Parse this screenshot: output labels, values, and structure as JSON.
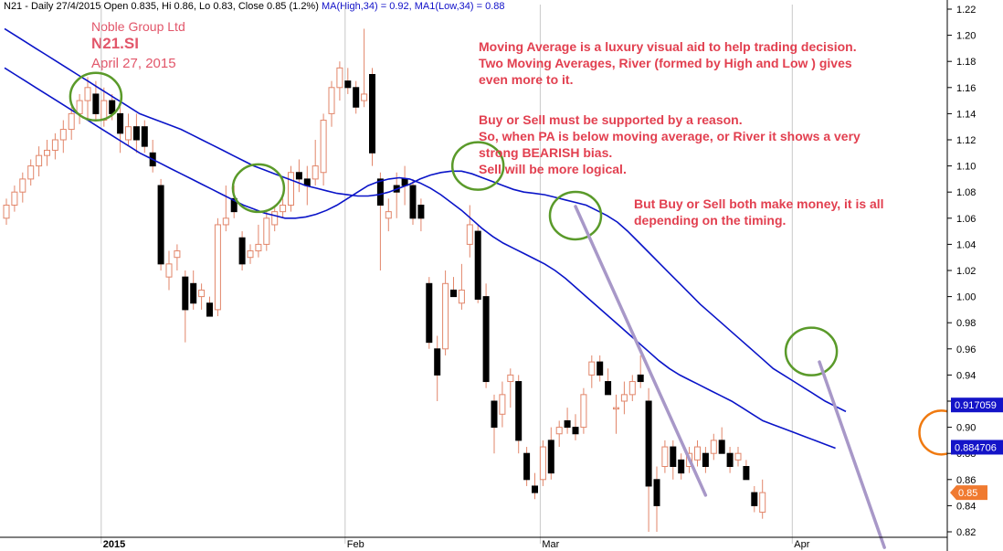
{
  "header": {
    "info": "N21 - Daily 27/4/2015 Open 0.835, Hi 0.86, Lo 0.83, Close 0.85 (1.2%)",
    "ma_high": "MA(High,34) = 0.92,",
    "ma_low": "MA1(Low,34) = 0.88"
  },
  "titles": {
    "company": "Noble Group Ltd",
    "symbol": "N21.SI",
    "date": "April 27, 2015"
  },
  "annotations": {
    "note1": "Moving Average is a luxury visual aid to help trading decision.\nTwo Moving Averages, River (formed by High and Low ) gives\neven more to it.",
    "note2": "Buy or Sell must be supported by a reason.\nSo, when PA is below moving average, or River it shows a very\nstrong BEARISH bias.\nSell will be more logical.",
    "note3": "But Buy or Sell both make money, it is all\ndepending on the timing."
  },
  "colors": {
    "up": "#ffffff",
    "down": "#000000",
    "wick": "#e2866a",
    "ma": "#0a14c8",
    "circle_green": "#5a9a2a",
    "circle_orange": "#f07a10",
    "trendline": "#a898c8",
    "price_box": "#1414c8",
    "last_box": "#f07a30"
  },
  "chart_data": {
    "type": "candlestick",
    "ylim": [
      0.815,
      1.225
    ],
    "y_ticks": [
      "1.22",
      "1.20",
      "1.18",
      "1.16",
      "1.14",
      "1.12",
      "1.10",
      "1.08",
      "1.06",
      "1.04",
      "1.02",
      "1.00",
      "0.98",
      "0.96",
      "0.94",
      "0.92",
      "0.90",
      "0.88",
      "0.86",
      "0.84",
      "0.82"
    ],
    "x_labels": [
      {
        "label": "2015",
        "index": 12
      },
      {
        "label": "Feb",
        "index": 42
      },
      {
        "label": "Mar",
        "index": 66
      },
      {
        "label": "Apr",
        "index": 97
      }
    ],
    "candles": [
      {
        "o": 1.06,
        "h": 1.075,
        "l": 1.055,
        "c": 1.07
      },
      {
        "o": 1.07,
        "h": 1.085,
        "l": 1.065,
        "c": 1.08
      },
      {
        "o": 1.08,
        "h": 1.095,
        "l": 1.072,
        "c": 1.09
      },
      {
        "o": 1.09,
        "h": 1.105,
        "l": 1.085,
        "c": 1.1
      },
      {
        "o": 1.1,
        "h": 1.115,
        "l": 1.092,
        "c": 1.108
      },
      {
        "o": 1.108,
        "h": 1.12,
        "l": 1.1,
        "c": 1.112
      },
      {
        "o": 1.112,
        "h": 1.125,
        "l": 1.105,
        "c": 1.12
      },
      {
        "o": 1.12,
        "h": 1.135,
        "l": 1.11,
        "c": 1.128
      },
      {
        "o": 1.128,
        "h": 1.145,
        "l": 1.12,
        "c": 1.14
      },
      {
        "o": 1.14,
        "h": 1.155,
        "l": 1.132,
        "c": 1.15
      },
      {
        "o": 1.15,
        "h": 1.168,
        "l": 1.135,
        "c": 1.16
      },
      {
        "o": 1.155,
        "h": 1.165,
        "l": 1.135,
        "c": 1.14
      },
      {
        "o": 1.135,
        "h": 1.16,
        "l": 1.13,
        "c": 1.15
      },
      {
        "o": 1.15,
        "h": 1.155,
        "l": 1.135,
        "c": 1.14
      },
      {
        "o": 1.14,
        "h": 1.145,
        "l": 1.11,
        "c": 1.125
      },
      {
        "o": 1.12,
        "h": 1.14,
        "l": 1.115,
        "c": 1.13
      },
      {
        "o": 1.13,
        "h": 1.14,
        "l": 1.11,
        "c": 1.12
      },
      {
        "o": 1.13,
        "h": 1.135,
        "l": 1.11,
        "c": 1.115
      },
      {
        "o": 1.11,
        "h": 1.12,
        "l": 1.095,
        "c": 1.1
      },
      {
        "o": 1.085,
        "h": 1.09,
        "l": 1.02,
        "c": 1.025
      },
      {
        "o": 1.015,
        "h": 1.035,
        "l": 1.005,
        "c": 1.025
      },
      {
        "o": 1.03,
        "h": 1.04,
        "l": 1.02,
        "c": 1.035
      },
      {
        "o": 1.015,
        "h": 1.02,
        "l": 0.965,
        "c": 0.99
      },
      {
        "o": 1.01,
        "h": 1.02,
        "l": 0.99,
        "c": 0.995
      },
      {
        "o": 1.0,
        "h": 1.01,
        "l": 0.99,
        "c": 1.005
      },
      {
        "o": 0.995,
        "h": 1.0,
        "l": 0.985,
        "c": 0.985
      },
      {
        "o": 0.99,
        "h": 1.06,
        "l": 0.985,
        "c": 1.055
      },
      {
        "o": 1.055,
        "h": 1.085,
        "l": 1.05,
        "c": 1.06
      },
      {
        "o": 1.075,
        "h": 1.085,
        "l": 1.06,
        "c": 1.065
      },
      {
        "o": 1.045,
        "h": 1.05,
        "l": 1.02,
        "c": 1.025
      },
      {
        "o": 1.03,
        "h": 1.04,
        "l": 1.025,
        "c": 1.035
      },
      {
        "o": 1.035,
        "h": 1.055,
        "l": 1.03,
        "c": 1.04
      },
      {
        "o": 1.04,
        "h": 1.065,
        "l": 1.035,
        "c": 1.06
      },
      {
        "o": 1.055,
        "h": 1.07,
        "l": 1.05,
        "c": 1.065
      },
      {
        "o": 1.065,
        "h": 1.075,
        "l": 1.06,
        "c": 1.07
      },
      {
        "o": 1.07,
        "h": 1.1,
        "l": 1.065,
        "c": 1.095
      },
      {
        "o": 1.095,
        "h": 1.105,
        "l": 1.08,
        "c": 1.09
      },
      {
        "o": 1.09,
        "h": 1.1,
        "l": 1.07,
        "c": 1.085
      },
      {
        "o": 1.09,
        "h": 1.12,
        "l": 1.085,
        "c": 1.1
      },
      {
        "o": 1.095,
        "h": 1.14,
        "l": 1.085,
        "c": 1.135
      },
      {
        "o": 1.14,
        "h": 1.165,
        "l": 1.13,
        "c": 1.16
      },
      {
        "o": 1.16,
        "h": 1.18,
        "l": 1.15,
        "c": 1.175
      },
      {
        "o": 1.165,
        "h": 1.175,
        "l": 1.155,
        "c": 1.16
      },
      {
        "o": 1.16,
        "h": 1.165,
        "l": 1.14,
        "c": 1.145
      },
      {
        "o": 1.15,
        "h": 1.205,
        "l": 1.145,
        "c": 1.155
      },
      {
        "o": 1.17,
        "h": 1.175,
        "l": 1.1,
        "c": 1.11
      },
      {
        "o": 1.09,
        "h": 1.095,
        "l": 1.02,
        "c": 1.07
      },
      {
        "o": 1.06,
        "h": 1.075,
        "l": 1.05,
        "c": 1.065
      },
      {
        "o": 1.085,
        "h": 1.095,
        "l": 1.06,
        "c": 1.08
      },
      {
        "o": 1.09,
        "h": 1.1,
        "l": 1.07,
        "c": 1.085
      },
      {
        "o": 1.085,
        "h": 1.09,
        "l": 1.055,
        "c": 1.06
      },
      {
        "o": 1.07,
        "h": 1.075,
        "l": 1.05,
        "c": 1.06
      },
      {
        "o": 1.01,
        "h": 1.015,
        "l": 0.96,
        "c": 0.965
      },
      {
        "o": 0.96,
        "h": 0.97,
        "l": 0.92,
        "c": 0.94
      },
      {
        "o": 0.96,
        "h": 1.02,
        "l": 0.955,
        "c": 1.01
      },
      {
        "o": 1.005,
        "h": 1.015,
        "l": 1.0,
        "c": 1.0
      },
      {
        "o": 0.995,
        "h": 1.025,
        "l": 0.99,
        "c": 1.005
      },
      {
        "o": 1.04,
        "h": 1.07,
        "l": 1.03,
        "c": 1.055
      },
      {
        "o": 1.05,
        "h": 1.055,
        "l": 0.995,
        "c": 0.998
      },
      {
        "o": 1.0,
        "h": 1.01,
        "l": 0.93,
        "c": 0.935
      },
      {
        "o": 0.92,
        "h": 0.925,
        "l": 0.88,
        "c": 0.9
      },
      {
        "o": 0.91,
        "h": 0.935,
        "l": 0.9,
        "c": 0.925
      },
      {
        "o": 0.935,
        "h": 0.945,
        "l": 0.915,
        "c": 0.94
      },
      {
        "o": 0.935,
        "h": 0.94,
        "l": 0.88,
        "c": 0.89
      },
      {
        "o": 0.88,
        "h": 0.885,
        "l": 0.855,
        "c": 0.86
      },
      {
        "o": 0.855,
        "h": 0.865,
        "l": 0.845,
        "c": 0.85
      },
      {
        "o": 0.86,
        "h": 0.89,
        "l": 0.855,
        "c": 0.885
      },
      {
        "o": 0.89,
        "h": 0.9,
        "l": 0.86,
        "c": 0.865
      },
      {
        "o": 0.895,
        "h": 0.905,
        "l": 0.885,
        "c": 0.9
      },
      {
        "o": 0.905,
        "h": 0.915,
        "l": 0.895,
        "c": 0.9
      },
      {
        "o": 0.9,
        "h": 0.91,
        "l": 0.89,
        "c": 0.895
      },
      {
        "o": 0.9,
        "h": 0.93,
        "l": 0.895,
        "c": 0.925
      },
      {
        "o": 0.94,
        "h": 0.955,
        "l": 0.93,
        "c": 0.95
      },
      {
        "o": 0.95,
        "h": 0.955,
        "l": 0.935,
        "c": 0.94
      },
      {
        "o": 0.935,
        "h": 0.945,
        "l": 0.925,
        "c": 0.925
      },
      {
        "o": 0.915,
        "h": 0.925,
        "l": 0.895,
        "c": 0.915
      },
      {
        "o": 0.92,
        "h": 0.935,
        "l": 0.91,
        "c": 0.925
      },
      {
        "o": 0.925,
        "h": 0.94,
        "l": 0.92,
        "c": 0.935
      },
      {
        "o": 0.94,
        "h": 0.955,
        "l": 0.93,
        "c": 0.935
      },
      {
        "o": 0.92,
        "h": 0.93,
        "l": 0.82,
        "c": 0.855
      },
      {
        "o": 0.86,
        "h": 0.87,
        "l": 0.82,
        "c": 0.84
      },
      {
        "o": 0.87,
        "h": 0.89,
        "l": 0.865,
        "c": 0.885
      },
      {
        "o": 0.885,
        "h": 0.89,
        "l": 0.86,
        "c": 0.87
      },
      {
        "o": 0.875,
        "h": 0.88,
        "l": 0.86,
        "c": 0.865
      },
      {
        "o": 0.87,
        "h": 0.885,
        "l": 0.865,
        "c": 0.88
      },
      {
        "o": 0.875,
        "h": 0.89,
        "l": 0.87,
        "c": 0.885
      },
      {
        "o": 0.88,
        "h": 0.885,
        "l": 0.865,
        "c": 0.87
      },
      {
        "o": 0.88,
        "h": 0.895,
        "l": 0.875,
        "c": 0.89
      },
      {
        "o": 0.89,
        "h": 0.9,
        "l": 0.88,
        "c": 0.88
      },
      {
        "o": 0.88,
        "h": 0.885,
        "l": 0.865,
        "c": 0.87
      },
      {
        "o": 0.875,
        "h": 0.885,
        "l": 0.87,
        "c": 0.88
      },
      {
        "o": 0.87,
        "h": 0.875,
        "l": 0.86,
        "c": 0.86
      },
      {
        "o": 0.85,
        "h": 0.855,
        "l": 0.835,
        "c": 0.84
      },
      {
        "o": 0.835,
        "h": 0.86,
        "l": 0.83,
        "c": 0.85
      }
    ],
    "ma_high": [
      1.205,
      1.2,
      1.195,
      1.19,
      1.185,
      1.18,
      1.175,
      1.17,
      1.165,
      1.16,
      1.155,
      1.15,
      1.145,
      1.14,
      1.137,
      1.134,
      1.131,
      1.128,
      1.124,
      1.12,
      1.116,
      1.112,
      1.108,
      1.104,
      1.1,
      1.097,
      1.094,
      1.091,
      1.088,
      1.085,
      1.083,
      1.081,
      1.079,
      1.078,
      1.077,
      1.077,
      1.078,
      1.08,
      1.083,
      1.086,
      1.09,
      1.093,
      1.095,
      1.096,
      1.096,
      1.094,
      1.091,
      1.088,
      1.085,
      1.082,
      1.08,
      1.079,
      1.078,
      1.076,
      1.074,
      1.072,
      1.07,
      1.066,
      1.062,
      1.057,
      1.05,
      1.042,
      1.034,
      1.026,
      1.018,
      1.01,
      1.002,
      0.994,
      0.987,
      0.98,
      0.973,
      0.966,
      0.959,
      0.952,
      0.945,
      0.94,
      0.935,
      0.93,
      0.925,
      0.92,
      0.916,
      0.912
    ],
    "ma_low": [
      1.175,
      1.17,
      1.165,
      1.16,
      1.155,
      1.15,
      1.145,
      1.14,
      1.135,
      1.13,
      1.125,
      1.12,
      1.115,
      1.11,
      1.106,
      1.102,
      1.098,
      1.094,
      1.09,
      1.086,
      1.082,
      1.078,
      1.074,
      1.07,
      1.067,
      1.064,
      1.062,
      1.06,
      1.06,
      1.061,
      1.063,
      1.066,
      1.07,
      1.075,
      1.08,
      1.085,
      1.088,
      1.09,
      1.091,
      1.09,
      1.087,
      1.083,
      1.078,
      1.072,
      1.066,
      1.059,
      1.052,
      1.046,
      1.041,
      1.037,
      1.033,
      1.029,
      1.025,
      1.02,
      1.014,
      1.007,
      1.0,
      0.993,
      0.986,
      0.979,
      0.972,
      0.965,
      0.958,
      0.951,
      0.945,
      0.94,
      0.936,
      0.932,
      0.928,
      0.924,
      0.92,
      0.915,
      0.91,
      0.905,
      0.902,
      0.899,
      0.896,
      0.893,
      0.89,
      0.887,
      0.884
    ],
    "price_labels": [
      {
        "text": "0.917059",
        "value": 0.917059
      },
      {
        "text": "0.884706",
        "value": 0.884706
      },
      {
        "text": "0.85",
        "value": 0.85
      }
    ],
    "circles": [
      {
        "index": 11,
        "price": 1.153,
        "color": "green"
      },
      {
        "index": 31,
        "price": 1.083,
        "color": "green"
      },
      {
        "index": 58,
        "price": 1.1,
        "color": "green"
      },
      {
        "index": 70,
        "price": 1.062,
        "color": "green"
      },
      {
        "index": 99,
        "price": 0.958,
        "color": "green"
      },
      {
        "index": 115,
        "price": 0.896,
        "color": "orange"
      }
    ],
    "trendlines": [
      {
        "from": {
          "index": 70,
          "price": 1.069
        },
        "to": {
          "index": 86,
          "price": 0.848
        }
      },
      {
        "from": {
          "index": 100,
          "price": 0.95
        },
        "to": {
          "index": 108,
          "price": 0.808
        }
      }
    ]
  }
}
